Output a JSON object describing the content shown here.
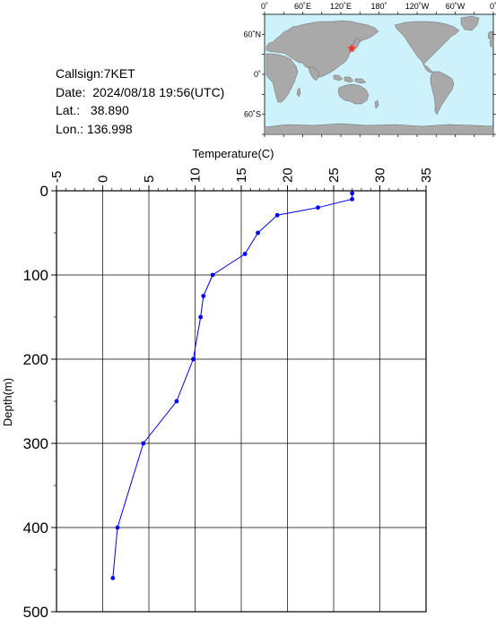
{
  "station": {
    "callsign_label": "Callsign:",
    "callsign": "7KET",
    "date_label": "Date:",
    "date": "2024/08/18 19:56(UTC)",
    "lat_label": "Lat.:",
    "lat": "38.890",
    "lon_label": "Lon.:",
    "lon": "136.998"
  },
  "map": {
    "lon_labels": [
      "0˚",
      "60˚E",
      "120˚E",
      "180˚",
      "120˚W",
      "60˚W",
      "0˚"
    ],
    "lat_labels": [
      "60˚N",
      "0˚",
      "60˚S"
    ],
    "ocean_color": "#cdf2fb",
    "land_color": "#a9a9a9",
    "marker_color": "#ff2a2a",
    "marker_symbol": "star"
  },
  "chart_data": {
    "type": "line",
    "title": "",
    "xlabel": "Temperature(C)",
    "ylabel": "Depth(m)",
    "xlim": [
      -5,
      35
    ],
    "ylim": [
      500,
      0
    ],
    "x_ticks": [
      -5,
      0,
      5,
      10,
      15,
      20,
      25,
      30,
      35
    ],
    "y_ticks": [
      0,
      100,
      200,
      300,
      400,
      500
    ],
    "x_axis_position": "top",
    "y_reversed": true,
    "grid": "vertical",
    "series": [
      {
        "color": "#0000ff",
        "marker": "circle",
        "points": [
          {
            "x": 27.0,
            "y": 3
          },
          {
            "x": 27.0,
            "y": 10
          },
          {
            "x": 23.3,
            "y": 20
          },
          {
            "x": 18.9,
            "y": 29
          },
          {
            "x": 16.8,
            "y": 50
          },
          {
            "x": 15.4,
            "y": 75
          },
          {
            "x": 11.9,
            "y": 100
          },
          {
            "x": 10.9,
            "y": 125
          },
          {
            "x": 10.6,
            "y": 150
          },
          {
            "x": 9.8,
            "y": 200
          },
          {
            "x": 8.0,
            "y": 250
          },
          {
            "x": 4.4,
            "y": 300
          },
          {
            "x": 1.6,
            "y": 400
          },
          {
            "x": 1.1,
            "y": 460
          }
        ]
      }
    ]
  }
}
